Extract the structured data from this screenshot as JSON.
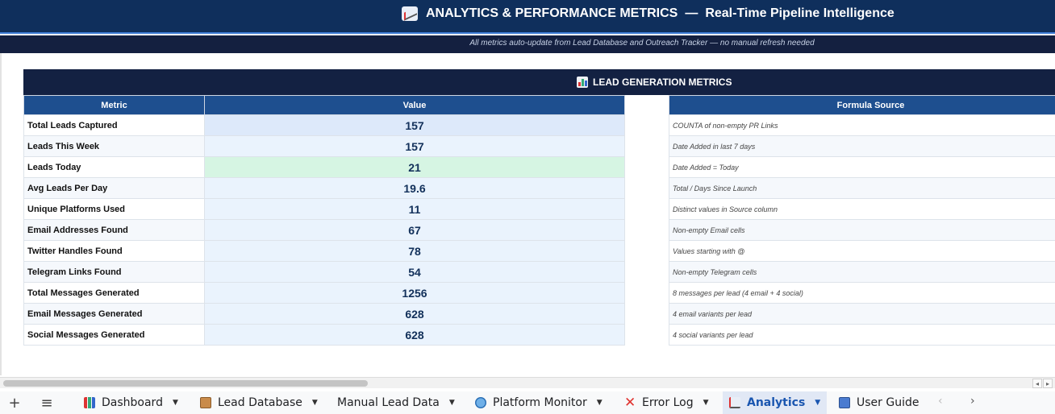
{
  "header": {
    "title": "ANALYTICS & PERFORMANCE METRICS",
    "separator": "—",
    "subtitle": "Real-Time Pipeline Intelligence",
    "tagline": "All metrics auto-update from Lead Database and Outreach Tracker — no manual refresh needed"
  },
  "section": {
    "title": "LEAD GENERATION METRICS"
  },
  "table": {
    "columns": {
      "metric": "Metric",
      "value": "Value",
      "formula": "Formula Source"
    },
    "rows": [
      {
        "metric": "Total Leads Captured",
        "value": "157",
        "formula": "COUNTA of non-empty PR Links"
      },
      {
        "metric": "Leads This Week",
        "value": "157",
        "formula": "Date Added in last 7 days"
      },
      {
        "metric": "Leads Today",
        "value": "21",
        "formula": "Date Added = Today"
      },
      {
        "metric": "Avg Leads Per Day",
        "value": "19.6",
        "formula": "Total / Days Since Launch"
      },
      {
        "metric": "Unique Platforms Used",
        "value": "11",
        "formula": "Distinct values in Source column"
      },
      {
        "metric": "Email Addresses Found",
        "value": "67",
        "formula": "Non-empty Email cells"
      },
      {
        "metric": "Twitter Handles Found",
        "value": "78",
        "formula": "Values starting with @"
      },
      {
        "metric": "Telegram Links Found",
        "value": "54",
        "formula": "Non-empty Telegram cells"
      },
      {
        "metric": "Total Messages Generated",
        "value": "1256",
        "formula": "8 messages per lead (4 email + 4 social)"
      },
      {
        "metric": "Email Messages Generated",
        "value": "628",
        "formula": "4 email variants per lead"
      },
      {
        "metric": "Social Messages Generated",
        "value": "628",
        "formula": "4 social variants per lead"
      }
    ]
  },
  "sheet_tabs": [
    {
      "label": "Dashboard",
      "icon": "bar-chart-icon",
      "active": false
    },
    {
      "label": "Lead Database",
      "icon": "clipboard-icon",
      "active": false
    },
    {
      "label": "Manual Lead Data",
      "icon": "",
      "active": false
    },
    {
      "label": "Platform Monitor",
      "icon": "globe-icon",
      "active": false
    },
    {
      "label": "Error Log",
      "icon": "cross-icon",
      "active": false
    },
    {
      "label": "Analytics",
      "icon": "line-chart-icon",
      "active": true
    },
    {
      "label": "User Guide",
      "icon": "book-icon",
      "active": false
    }
  ],
  "toolbar": {
    "add_sheet": "+",
    "all_sheets": "≡"
  },
  "colors": {
    "header_bg": "#0f2f5c",
    "section_bg": "#132142",
    "column_header_bg": "#1e4f8f",
    "highlight_green": "#d6f5e3",
    "active_tab": "#1a56b0"
  }
}
